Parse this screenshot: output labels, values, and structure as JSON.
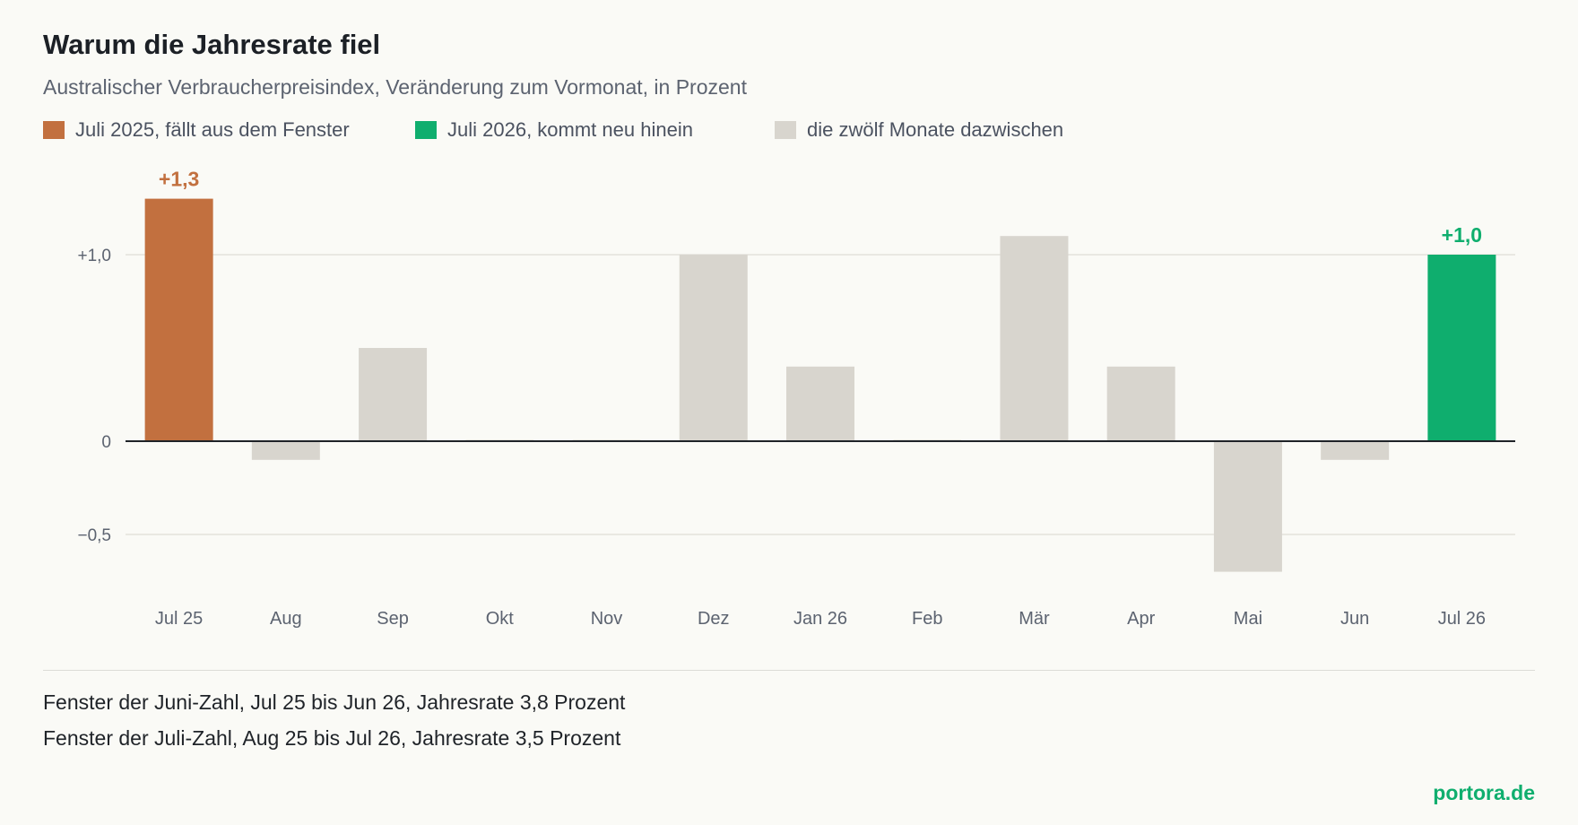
{
  "chart_data": {
    "type": "bar",
    "title": "Warum die Jahresrate fiel",
    "subtitle": "Australischer Verbraucherpreisindex, Veränderung zum Vormonat, in Prozent",
    "categories": [
      "Jul 25",
      "Aug",
      "Sep",
      "Okt",
      "Nov",
      "Dez",
      "Jan 26",
      "Feb",
      "Mär",
      "Apr",
      "Mai",
      "Jun",
      "Jul 26"
    ],
    "values": [
      1.3,
      -0.1,
      0.5,
      0.0,
      0.0,
      1.0,
      0.4,
      0.0,
      1.1,
      0.4,
      -0.7,
      -0.1,
      1.0
    ],
    "groups": [
      "out",
      "mid",
      "mid",
      "mid",
      "mid",
      "mid",
      "mid",
      "mid",
      "mid",
      "mid",
      "mid",
      "mid",
      "in"
    ],
    "legend": [
      {
        "key": "out",
        "label": "Juli 2025, fällt aus dem Fenster",
        "color": "#c2703f"
      },
      {
        "key": "in",
        "label": "Juli 2026, kommt neu hinein",
        "color": "#0fae6e"
      },
      {
        "key": "mid",
        "label": "die zwölf Monate dazwischen",
        "color": "#d8d5ce"
      }
    ],
    "legend_placement": "top-left",
    "data_labels": [
      {
        "index": 0,
        "text": "+1,3"
      },
      {
        "index": 12,
        "text": "+1,0"
      }
    ],
    "yticks": [
      {
        "value": 1.0,
        "label": "+1,0"
      },
      {
        "value": 0,
        "label": "0"
      },
      {
        "value": -0.5,
        "label": "−0,5"
      }
    ],
    "ylim": [
      -0.85,
      1.5
    ],
    "grid": true,
    "xlabel": "",
    "ylabel": ""
  },
  "notes": [
    "Fenster der Juni-Zahl, Jul 25 bis Jun 26, Jahresrate 3,8 Prozent",
    "Fenster der Juli-Zahl, Aug 25 bis Jul 26, Jahresrate 3,5 Prozent"
  ],
  "brand": "portora.de"
}
